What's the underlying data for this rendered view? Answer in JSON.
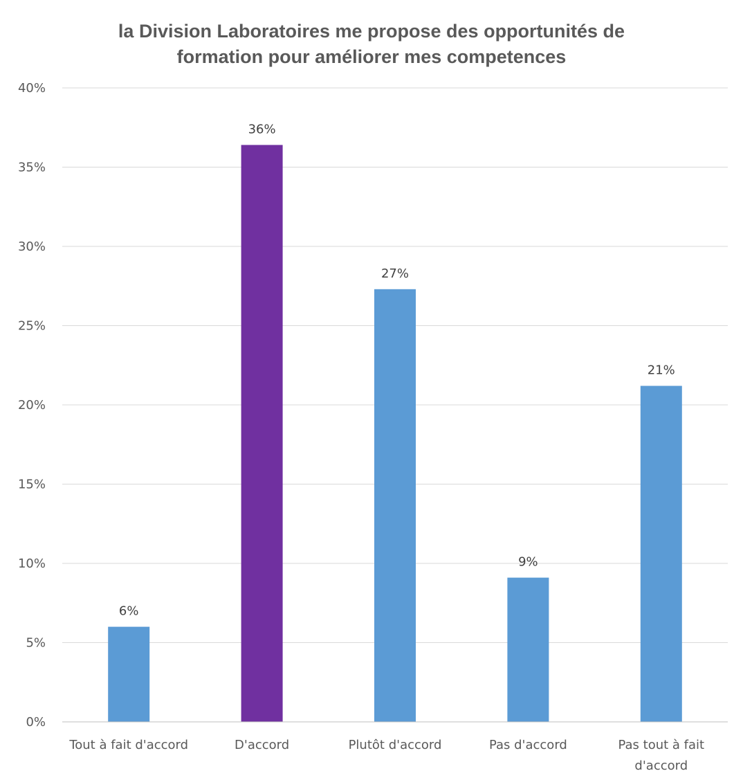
{
  "chart_data": {
    "type": "bar",
    "title_lines": [
      "la Division Laboratoires me propose des opportunités de",
      "formation pour améliorer mes competences"
    ],
    "categories": [
      [
        "Tout à fait d'accord"
      ],
      [
        "D'accord"
      ],
      [
        "Plutôt d'accord"
      ],
      [
        "Pas d'accord"
      ],
      [
        "Pas tout à fait",
        "d'accord"
      ]
    ],
    "values": [
      6,
      36.4,
      27.3,
      9.1,
      21.2
    ],
    "data_labels": [
      "6%",
      "36%",
      "27%",
      "9%",
      "21%"
    ],
    "bar_colors": [
      "#5b9bd5",
      "#7030a0",
      "#5b9bd5",
      "#5b9bd5",
      "#5b9bd5"
    ],
    "ylim": [
      0,
      40
    ],
    "yticks": [
      0,
      5,
      10,
      15,
      20,
      25,
      30,
      35,
      40
    ],
    "ytick_labels": [
      "0%",
      "5%",
      "10%",
      "15%",
      "20%",
      "25%",
      "30%",
      "35%",
      "40%"
    ],
    "grid": true,
    "legend": "none",
    "colors": {
      "title": "#595959",
      "axis_text": "#595959",
      "gridline": "#d9d9d9",
      "axis_line": "#bfbfbf"
    }
  }
}
